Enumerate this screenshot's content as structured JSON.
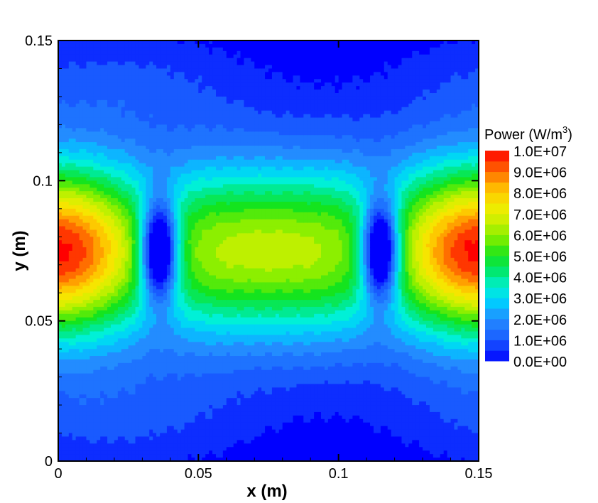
{
  "chart_data": {
    "type": "heatmap",
    "title": "",
    "xlabel": "x (m)",
    "ylabel": "y (m)",
    "xlim": [
      0,
      0.15
    ],
    "ylim": [
      0,
      0.15
    ],
    "x_ticks": [
      0,
      0.05,
      0.1,
      0.15
    ],
    "x_tick_labels": [
      "0",
      "0.05",
      "0.1",
      "0.15"
    ],
    "y_ticks": [
      0,
      0.05,
      0.1,
      0.15
    ],
    "y_tick_labels": [
      "0",
      "0.05",
      "0.1",
      "0.15"
    ],
    "colorbar": {
      "title_main": "Power (W/m",
      "title_sup": "3",
      "title_end": ")",
      "min": 0,
      "max": 10000000,
      "levels": 20,
      "placement": "right",
      "labels": [
        "1.0E+07",
        "9.0E+06",
        "8.0E+06",
        "7.0E+06",
        "6.0E+06",
        "5.0E+06",
        "4.0E+06",
        "3.0E+06",
        "2.0E+06",
        "1.0E+06",
        "0.0E+00"
      ],
      "colors": [
        "#0000ff",
        "#1a4cff",
        "#2a7fff",
        "#00c8ff",
        "#00f0e0",
        "#00e67a",
        "#19e619",
        "#7fef00",
        "#c8f000",
        "#f5f000",
        "#ffc800",
        "#ff9900",
        "#ff6400",
        "#ff3200",
        "#ff0000"
      ]
    },
    "field_description": "Power density field: values near 1.0E+07 at x=0 and x=0.15 around y=0.075; ~6.0E+06 plateau at center; low-power lobes near x=0.035 and x=0.115 at y=0.075; minima near y=0 and y=0.15.",
    "grid": false
  }
}
